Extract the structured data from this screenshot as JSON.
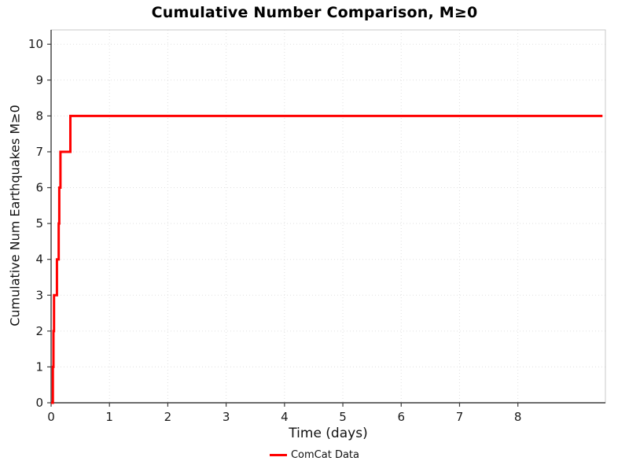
{
  "figure": {
    "title": "Cumulative Number Comparison, M≥0",
    "xlabel": "Time (days)",
    "ylabel": "Cumulative Num Earthquakes M≥0"
  },
  "chart_data": {
    "type": "line",
    "subtype": "cumulative-step",
    "title": "Cumulative Number Comparison, M≥0",
    "xlabel": "Time (days)",
    "ylabel": "Cumulative Num Earthquakes M≥0",
    "xlim": [
      0,
      9.5
    ],
    "ylim": [
      0,
      10.4
    ],
    "xticks": [
      0,
      1,
      2,
      3,
      4,
      5,
      6,
      7,
      8
    ],
    "yticks": [
      0,
      1,
      2,
      3,
      4,
      5,
      6,
      7,
      8,
      9,
      10
    ],
    "grid": true,
    "grid_color": "#e0e0e0",
    "legend_position": "below-center",
    "legend": [
      {
        "label": "ComCat Data",
        "color": "#ff0000"
      }
    ],
    "series": [
      {
        "name": "ComCat Data",
        "color": "#ff0000",
        "linewidth": 3,
        "start": [
          0,
          0
        ],
        "event_times_days": [
          0.03,
          0.04,
          0.05,
          0.1,
          0.13,
          0.14,
          0.16,
          0.33
        ],
        "cumulative_counts": [
          1,
          2,
          3,
          4,
          5,
          6,
          7,
          8
        ],
        "end_time_days": 9.45,
        "final_count": 8
      }
    ]
  }
}
